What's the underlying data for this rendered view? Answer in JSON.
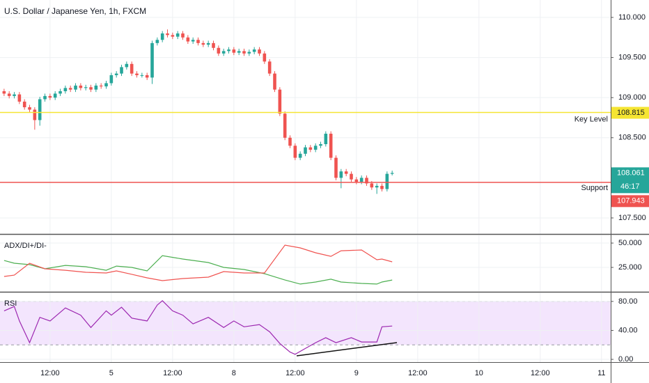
{
  "chart_data": [
    {
      "type": "candlestick",
      "title": "U.S. Dollar / Japanese Yen, 1h, FXCM",
      "up_color": "#26a69a",
      "down_color": "#ef5350",
      "open": [
        109.08,
        109.05,
        109.02,
        109.04,
        108.95,
        108.88,
        108.85,
        108.72,
        108.98,
        109.02,
        109.0,
        109.05,
        109.08,
        109.12,
        109.1,
        109.15,
        109.12,
        109.13,
        109.1,
        109.15,
        109.14,
        109.18,
        109.28,
        109.3,
        109.38,
        109.42,
        109.3,
        109.28,
        109.28,
        109.25,
        109.68,
        109.72,
        109.8,
        109.78,
        109.76,
        109.8,
        109.75,
        109.7,
        109.72,
        109.68,
        109.66,
        109.68,
        109.62,
        109.55,
        109.58,
        109.6,
        109.56,
        109.58,
        109.55,
        109.57,
        109.6,
        109.55,
        109.45,
        109.3,
        109.1,
        108.8,
        108.5,
        108.4,
        108.25,
        108.3,
        108.38,
        108.35,
        108.4,
        108.42,
        108.55,
        108.25,
        108.0,
        108.08,
        108.05,
        107.98,
        107.95,
        108.0,
        107.93,
        107.88,
        107.9,
        107.86,
        108.05
      ],
      "high": [
        109.11,
        109.08,
        109.07,
        109.07,
        108.98,
        108.91,
        108.88,
        109.01,
        109.05,
        109.05,
        109.08,
        109.11,
        109.15,
        109.15,
        109.18,
        109.18,
        109.16,
        109.16,
        109.18,
        109.18,
        109.21,
        109.31,
        109.33,
        109.41,
        109.45,
        109.45,
        109.33,
        109.31,
        109.31,
        109.71,
        109.75,
        109.83,
        109.85,
        109.81,
        109.83,
        109.83,
        109.78,
        109.75,
        109.75,
        109.71,
        109.71,
        109.71,
        109.65,
        109.61,
        109.63,
        109.63,
        109.61,
        109.61,
        109.6,
        109.63,
        109.63,
        109.58,
        109.48,
        109.33,
        109.13,
        108.83,
        108.53,
        108.43,
        108.33,
        108.41,
        108.41,
        108.43,
        108.45,
        108.58,
        108.58,
        108.28,
        108.11,
        108.11,
        108.08,
        108.01,
        108.03,
        108.03,
        107.96,
        107.93,
        107.93,
        108.08,
        108.09
      ],
      "low": [
        109.02,
        108.99,
        108.99,
        108.92,
        108.85,
        108.82,
        108.6,
        108.65,
        108.95,
        108.97,
        108.97,
        109.02,
        109.05,
        109.07,
        109.07,
        109.09,
        109.09,
        109.07,
        109.07,
        109.11,
        109.11,
        109.15,
        109.25,
        109.27,
        109.35,
        109.27,
        109.25,
        109.25,
        109.22,
        109.17,
        109.65,
        109.69,
        109.75,
        109.73,
        109.73,
        109.72,
        109.67,
        109.67,
        109.65,
        109.63,
        109.63,
        109.59,
        109.52,
        109.52,
        109.55,
        109.53,
        109.53,
        109.52,
        109.52,
        109.54,
        109.52,
        109.42,
        109.27,
        109.07,
        108.77,
        108.47,
        108.37,
        108.22,
        108.22,
        108.27,
        108.32,
        108.32,
        108.37,
        108.39,
        108.22,
        107.97,
        107.87,
        108.02,
        107.95,
        107.92,
        107.92,
        107.9,
        107.85,
        107.8,
        107.83,
        107.83,
        108.03
      ],
      "close": [
        109.05,
        109.02,
        109.04,
        108.95,
        108.88,
        108.85,
        108.72,
        108.98,
        109.02,
        109.0,
        109.05,
        109.08,
        109.12,
        109.1,
        109.15,
        109.12,
        109.13,
        109.1,
        109.15,
        109.14,
        109.18,
        109.28,
        109.3,
        109.38,
        109.42,
        109.3,
        109.28,
        109.28,
        109.25,
        109.68,
        109.72,
        109.8,
        109.78,
        109.76,
        109.8,
        109.75,
        109.7,
        109.72,
        109.68,
        109.66,
        109.68,
        109.62,
        109.55,
        109.58,
        109.6,
        109.56,
        109.58,
        109.55,
        109.57,
        109.6,
        109.55,
        109.45,
        109.3,
        109.1,
        108.8,
        108.5,
        108.4,
        108.25,
        108.3,
        108.38,
        108.35,
        108.4,
        108.42,
        108.55,
        108.25,
        108.0,
        108.08,
        108.05,
        107.98,
        107.95,
        108.0,
        107.93,
        107.88,
        107.9,
        107.86,
        108.05,
        108.061
      ],
      "countdown": "46:17",
      "levels": [
        {
          "label": "Key Level",
          "value": 108.815,
          "color": "#f5e532"
        },
        {
          "label": "Support",
          "value": 107.943,
          "color": "#ef5350"
        }
      ],
      "xlim": [
        -0.8,
        118.8
      ],
      "xticks": [
        {
          "value": 9,
          "label": "12:00"
        },
        {
          "value": 21,
          "label": "5"
        },
        {
          "value": 33,
          "label": "12:00"
        },
        {
          "value": 45,
          "label": "8"
        },
        {
          "value": 57,
          "label": "12:00"
        },
        {
          "value": 69,
          "label": "9"
        },
        {
          "value": 81,
          "label": "12:00"
        },
        {
          "value": 93,
          "label": "10"
        },
        {
          "value": 105,
          "label": "12:00"
        },
        {
          "value": 117,
          "label": "11"
        }
      ],
      "ylim": [
        107.3,
        110.217
      ],
      "yticks": [
        {
          "value": 110,
          "label": "110.000"
        },
        {
          "value": 109.5,
          "label": "109.500"
        },
        {
          "value": 109,
          "label": "109.000"
        },
        {
          "value": 108.5,
          "label": "108.500"
        },
        {
          "value": 107.5,
          "label": "107.500"
        }
      ],
      "grid": true
    },
    {
      "type": "line",
      "title": "ADX/DI+/DI-",
      "x": [
        0,
        2,
        5,
        8,
        12,
        16,
        20,
        22,
        25,
        28,
        31,
        35,
        40,
        43,
        47,
        51,
        55,
        58,
        61,
        64,
        66,
        70,
        73,
        74,
        76
      ],
      "series": [
        {
          "color": "#4caf50",
          "values": [
            32.1,
            29.3,
            27.9,
            23.6,
            27.1,
            25.7,
            22.1,
            26.4,
            25.0,
            21.4,
            37.1,
            33.6,
            30.0,
            25.0,
            22.9,
            18.6,
            12.1,
            7.9,
            10.0,
            12.9,
            10.0,
            8.6,
            7.9,
            10.0,
            12.1
          ]
        },
        {
          "color": "#f05350",
          "values": [
            15.7,
            17.1,
            29.3,
            23.6,
            22.1,
            20.0,
            19.3,
            21.4,
            17.9,
            14.3,
            11.4,
            13.6,
            15.0,
            20.7,
            19.3,
            19.3,
            47.9,
            45.0,
            40.0,
            36.4,
            42.1,
            42.9,
            32.9,
            33.6,
            30.7
          ]
        }
      ],
      "xlim": [
        -0.8,
        118.8
      ],
      "ylim": [
        0.7,
        57.9
      ],
      "yticks": [
        {
          "value": 50,
          "label": "50.000"
        },
        {
          "value": 25,
          "label": "25.000"
        }
      ]
    },
    {
      "type": "line",
      "title": "RSI",
      "x": [
        0,
        2,
        3,
        5,
        7,
        9,
        12,
        15,
        17,
        20,
        21,
        23,
        25,
        28,
        30,
        31,
        33,
        35,
        37,
        40,
        43,
        45,
        47,
        50,
        52,
        54,
        56,
        57,
        59,
        61,
        63,
        65,
        68,
        70,
        73,
        74,
        76
      ],
      "series": [
        {
          "color": "#9c27b0",
          "values": [
            67,
            73,
            53,
            23,
            58,
            53,
            71,
            61,
            44,
            67,
            61,
            72,
            57,
            53,
            75,
            81,
            67,
            61,
            49,
            58,
            44,
            53,
            45,
            48,
            38,
            22,
            10,
            7,
            15,
            23,
            30,
            23,
            30,
            24,
            24,
            45,
            46
          ]
        }
      ],
      "band": [
        20,
        80
      ],
      "band_color": "#f3e5fd",
      "xlim": [
        -0.8,
        118.8
      ],
      "ylim": [
        -3.8,
        91.4
      ],
      "yticks": [
        {
          "value": 80,
          "label": "80.00"
        },
        {
          "value": 40,
          "label": "40.00"
        },
        {
          "value": 0,
          "label": "0.00"
        }
      ]
    }
  ]
}
